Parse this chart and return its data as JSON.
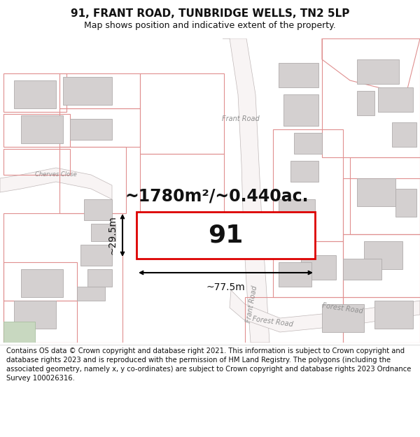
{
  "title": "91, FRANT ROAD, TUNBRIDGE WELLS, TN2 5LP",
  "subtitle": "Map shows position and indicative extent of the property.",
  "footer": "Contains OS data © Crown copyright and database right 2021. This information is subject to Crown copyright and database rights 2023 and is reproduced with the permission of HM Land Registry. The polygons (including the associated geometry, namely x, y co-ordinates) are subject to Crown copyright and database rights 2023 Ordnance Survey 100026316.",
  "area_label": "~1780m²/~0.440ac.",
  "width_label": "~77.5m",
  "height_label": "~29.5m",
  "number_label": "91",
  "map_bg": "#ffffff",
  "parcel_edge": "#e8a0a0",
  "building_fill": "#d8d4d4",
  "building_edge": "#b8b4b4",
  "road_centerline": "#c8c0c0",
  "road_label_color": "#909090",
  "highlight_color": "#dd0000",
  "text_color": "#111111",
  "title_fontsize": 11,
  "subtitle_fontsize": 9,
  "footer_fontsize": 7.2,
  "area_fontsize": 17,
  "number_fontsize": 26,
  "dim_fontsize": 10,
  "road_label_fontsize": 7
}
